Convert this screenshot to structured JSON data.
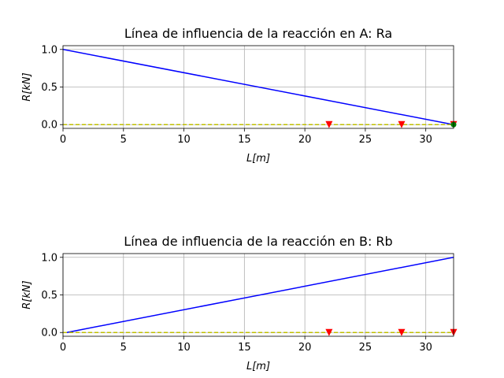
{
  "chart_data": [
    {
      "type": "line",
      "title": "Línea de influencia de la reacción en A: Ra",
      "xlabel": "L[m]",
      "ylabel": "R[kN]",
      "xlim": [
        0,
        32.3
      ],
      "ylim": [
        -0.05,
        1.05
      ],
      "xticks": [
        "0",
        "5",
        "10",
        "15",
        "20",
        "25",
        "30"
      ],
      "xtick_values": [
        0,
        5,
        10,
        15,
        20,
        25,
        30
      ],
      "yticks": [
        "0.0",
        "0.5",
        "1.0"
      ],
      "ytick_values": [
        0,
        0.5,
        1.0
      ],
      "grid": true,
      "series": [
        {
          "style": "solid",
          "color": "#0000ff",
          "x": [
            0,
            32.3
          ],
          "y": [
            1.0,
            0.0
          ]
        },
        {
          "style": "dashed",
          "color": "#bfbf00",
          "x": [
            0,
            32.3
          ],
          "y": [
            0,
            0
          ]
        }
      ],
      "markers": [
        {
          "shape": "triangle-down",
          "color": "#ff0000",
          "x": [
            22,
            28,
            32.3
          ],
          "y": [
            0,
            0,
            0
          ]
        },
        {
          "shape": "circle",
          "color": "#008000",
          "x": [
            32.3
          ],
          "y": [
            0
          ]
        }
      ]
    },
    {
      "type": "line",
      "title": "Línea de influencia de la reacción en B: Rb",
      "xlabel": "L[m]",
      "ylabel": "R[kN]",
      "xlim": [
        0,
        32.3
      ],
      "ylim": [
        -0.05,
        1.05
      ],
      "xticks": [
        "0",
        "5",
        "10",
        "15",
        "20",
        "25",
        "30"
      ],
      "xtick_values": [
        0,
        5,
        10,
        15,
        20,
        25,
        30
      ],
      "yticks": [
        "0.0",
        "0.5",
        "1.0"
      ],
      "ytick_values": [
        0,
        0.5,
        1.0
      ],
      "grid": true,
      "series": [
        {
          "style": "solid",
          "color": "#0000ff",
          "x": [
            0.3,
            32.3
          ],
          "y": [
            0.0,
            1.0
          ]
        },
        {
          "style": "dashed",
          "color": "#bfbf00",
          "x": [
            0,
            32.3
          ],
          "y": [
            0,
            0
          ]
        }
      ],
      "markers": [
        {
          "shape": "triangle-down",
          "color": "#ff0000",
          "x": [
            22,
            28,
            32.3
          ],
          "y": [
            0,
            0,
            0
          ]
        }
      ]
    }
  ]
}
